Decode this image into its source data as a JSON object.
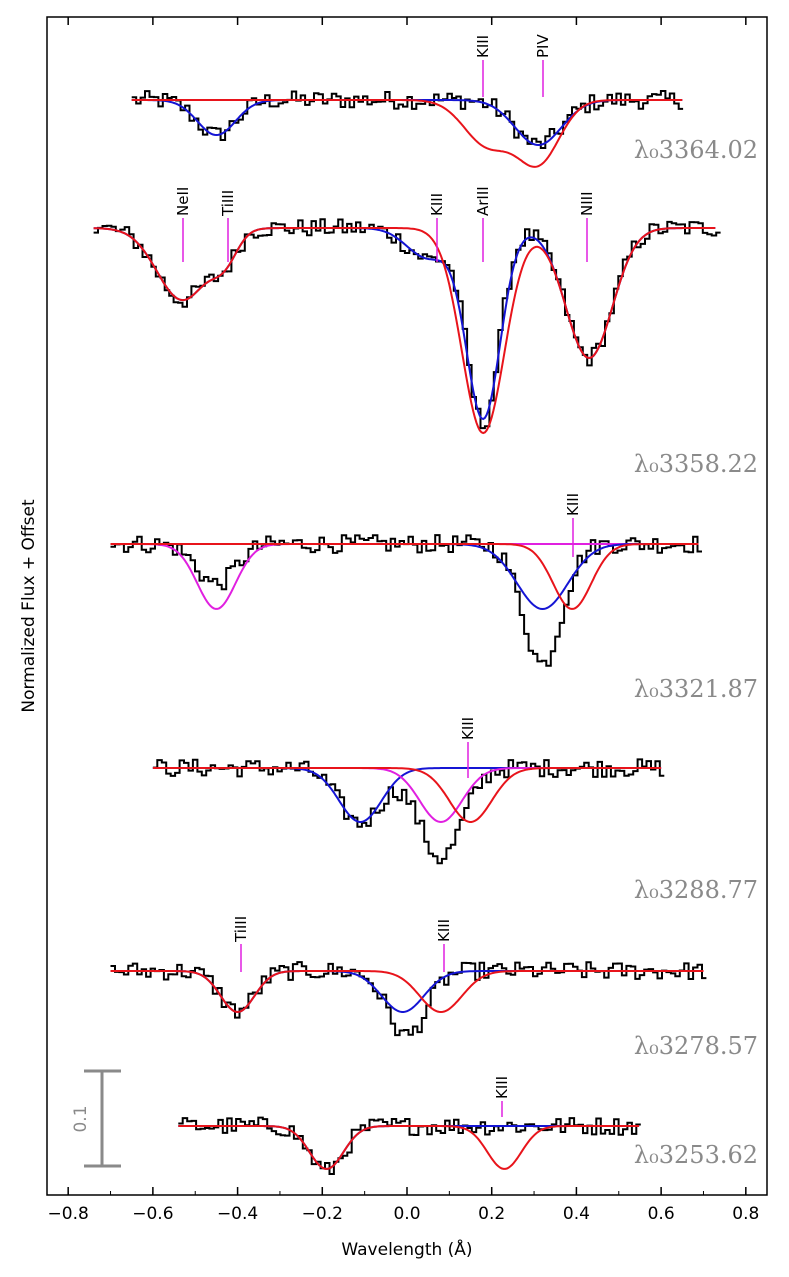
{
  "chart_data": {
    "type": "line",
    "xlabel": "Wavelength (Å)",
    "ylabel": "Normalized Flux + Offset",
    "xlim": [
      -0.85,
      0.85
    ],
    "xticks": [
      "−0.8",
      "−0.6",
      "−0.4",
      "−0.2",
      "0.0",
      "0.2",
      "0.4",
      "0.6",
      "0.8"
    ],
    "xtick_values": [
      -0.8,
      -0.6,
      -0.4,
      -0.2,
      0.0,
      0.2,
      0.4,
      0.6,
      0.8
    ],
    "scale_bar": {
      "label": "0.1",
      "value": 0.1
    },
    "colors": {
      "data": "#000000",
      "total_fit": "#e8141b",
      "component_blue": "#1515d4",
      "component_magenta": "#e020e0",
      "marker": "#e020e0",
      "label": "#8a8a8a"
    },
    "panels": [
      {
        "label": "λ₀3364.02",
        "continuum": 1.0,
        "xrange": [
          -0.65,
          0.65
        ],
        "observed_components": [
          {
            "center": -0.45,
            "depth": 0.035,
            "sigma": 0.045
          },
          {
            "center": 0.31,
            "depth": 0.045,
            "sigma": 0.055
          }
        ],
        "fits": [
          {
            "color": "blue",
            "components": [
              {
                "center": -0.45,
                "depth": 0.035,
                "sigma": 0.045
              },
              {
                "center": 0.31,
                "depth": 0.045,
                "sigma": 0.055
              }
            ]
          },
          {
            "color": "red",
            "components": [
              {
                "center": 0.31,
                "depth": 0.062,
                "sigma": 0.05
              },
              {
                "center": 0.19,
                "depth": 0.045,
                "sigma": 0.055
              }
            ]
          }
        ],
        "ion_markers": [
          {
            "label": "KIII",
            "x": 0.18
          },
          {
            "label": "PIV",
            "x": 0.32
          }
        ]
      },
      {
        "label": "λ₀3358.22",
        "continuum": 1.0,
        "xrange": [
          -0.74,
          0.73
        ],
        "observed_components": [
          {
            "center": -0.53,
            "depth": 0.072,
            "sigma": 0.06
          },
          {
            "center": -0.43,
            "depth": 0.025,
            "sigma": 0.03
          },
          {
            "center": 0.05,
            "depth": 0.03,
            "sigma": 0.05
          },
          {
            "center": 0.18,
            "depth": 0.195,
            "sigma": 0.038
          },
          {
            "center": 0.43,
            "depth": 0.13,
            "sigma": 0.055
          }
        ],
        "fits": [
          {
            "color": "blue",
            "components": [
              {
                "center": -0.53,
                "depth": 0.072,
                "sigma": 0.06
              },
              {
                "center": -0.43,
                "depth": 0.025,
                "sigma": 0.03
              },
              {
                "center": 0.05,
                "depth": 0.03,
                "sigma": 0.05
              },
              {
                "center": 0.18,
                "depth": 0.19,
                "sigma": 0.04
              },
              {
                "center": 0.43,
                "depth": 0.13,
                "sigma": 0.055
              }
            ]
          },
          {
            "color": "red",
            "components": [
              {
                "center": -0.53,
                "depth": 0.072,
                "sigma": 0.06
              },
              {
                "center": -0.43,
                "depth": 0.025,
                "sigma": 0.03
              },
              {
                "center": 0.18,
                "depth": 0.205,
                "sigma": 0.05
              },
              {
                "center": 0.43,
                "depth": 0.13,
                "sigma": 0.055
              }
            ]
          }
        ],
        "ion_markers": [
          {
            "label": "NeII",
            "x": -0.53
          },
          {
            "label": "TiIII",
            "x": -0.42
          },
          {
            "label": "KIII",
            "x": 0.08
          },
          {
            "label": "ArIII",
            "x": 0.18
          },
          {
            "label": "NIII",
            "x": 0.43
          }
        ]
      },
      {
        "label": "λ₀3321.87",
        "continuum": 1.0,
        "xrange": [
          -0.7,
          0.69
        ],
        "observed_components": [
          {
            "center": -0.45,
            "depth": 0.04,
            "sigma": 0.045
          },
          {
            "center": 0.32,
            "depth": 0.12,
            "sigma": 0.045
          }
        ],
        "fits": [
          {
            "color": "magenta",
            "components": [
              {
                "center": -0.45,
                "depth": 0.065,
                "sigma": 0.045
              }
            ]
          },
          {
            "color": "blue",
            "components": [
              {
                "center": 0.32,
                "depth": 0.065,
                "sigma": 0.06
              }
            ]
          },
          {
            "color": "red",
            "components": [
              {
                "center": 0.39,
                "depth": 0.065,
                "sigma": 0.045
              }
            ]
          }
        ],
        "ion_markers": [
          {
            "label": "KIII",
            "x": 0.4
          }
        ]
      },
      {
        "label": "λ₀3288.77",
        "continuum": 1.0,
        "xrange": [
          -0.6,
          0.6
        ],
        "observed_components": [
          {
            "center": -0.11,
            "depth": 0.055,
            "sigma": 0.05
          },
          {
            "center": 0.08,
            "depth": 0.09,
            "sigma": 0.05
          }
        ],
        "fits": [
          {
            "color": "blue",
            "components": [
              {
                "center": -0.11,
                "depth": 0.054,
                "sigma": 0.05
              }
            ]
          },
          {
            "color": "magenta",
            "components": [
              {
                "center": 0.08,
                "depth": 0.054,
                "sigma": 0.05
              }
            ]
          },
          {
            "color": "red",
            "components": [
              {
                "center": 0.15,
                "depth": 0.054,
                "sigma": 0.05
              }
            ]
          }
        ],
        "ion_markers": [
          {
            "label": "KIII",
            "x": 0.15
          }
        ]
      },
      {
        "label": "λ₀3278.57",
        "continuum": 1.0,
        "xrange": [
          -0.7,
          0.7
        ],
        "observed_components": [
          {
            "center": -0.4,
            "depth": 0.04,
            "sigma": 0.04
          },
          {
            "center": 0.0,
            "depth": 0.065,
            "sigma": 0.045
          }
        ],
        "fits": [
          {
            "color": "blue",
            "components": [
              {
                "center": -0.4,
                "depth": 0.041,
                "sigma": 0.04
              },
              {
                "center": -0.01,
                "depth": 0.041,
                "sigma": 0.05
              }
            ]
          },
          {
            "color": "red",
            "components": [
              {
                "center": -0.4,
                "depth": 0.041,
                "sigma": 0.04
              },
              {
                "center": 0.08,
                "depth": 0.041,
                "sigma": 0.05
              }
            ]
          }
        ],
        "ion_markers": [
          {
            "label": "TiIII",
            "x": -0.39
          },
          {
            "label": "KIII",
            "x": 0.09
          }
        ]
      },
      {
        "label": "λ₀3253.62",
        "continuum": 1.0,
        "xrange": [
          -0.54,
          0.55
        ],
        "observed_components": [
          {
            "center": -0.19,
            "depth": 0.045,
            "sigma": 0.04
          }
        ],
        "fits": [
          {
            "color": "blue",
            "components": [
              {
                "center": -0.19,
                "depth": 0.043,
                "sigma": 0.04
              }
            ]
          },
          {
            "color": "red",
            "components": [
              {
                "center": -0.19,
                "depth": 0.043,
                "sigma": 0.04
              },
              {
                "center": 0.23,
                "depth": 0.043,
                "sigma": 0.04
              }
            ]
          }
        ],
        "ion_markers": [
          {
            "label": "KIII",
            "x": 0.23
          }
        ]
      }
    ]
  }
}
